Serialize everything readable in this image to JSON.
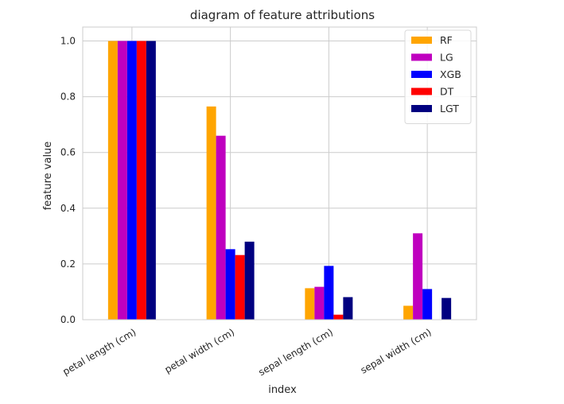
{
  "chart_data": {
    "type": "bar",
    "title": "diagram of feature attributions",
    "xlabel": "index",
    "ylabel": "feature value",
    "categories": [
      "petal length (cm)",
      "petal width (cm)",
      "sepal length (cm)",
      "sepal width (cm)"
    ],
    "series": [
      {
        "name": "RF",
        "color": "#ffa500",
        "values": [
          1.0,
          0.765,
          0.113,
          0.05
        ]
      },
      {
        "name": "LG",
        "color": "#bf00bf",
        "values": [
          1.0,
          0.66,
          0.118,
          0.31
        ]
      },
      {
        "name": "XGB",
        "color": "#0000ff",
        "values": [
          1.0,
          0.253,
          0.193,
          0.11
        ]
      },
      {
        "name": "DT",
        "color": "#ff0000",
        "values": [
          1.0,
          0.232,
          0.018,
          0.0
        ]
      },
      {
        "name": "LGT",
        "color": "#000080",
        "values": [
          1.0,
          0.28,
          0.081,
          0.078
        ]
      }
    ],
    "ylim": [
      0,
      1.05
    ],
    "yticks": [
      "0.0",
      "0.2",
      "0.4",
      "0.6",
      "0.8",
      "1.0"
    ],
    "grid": true,
    "legend_position": "top-right"
  }
}
